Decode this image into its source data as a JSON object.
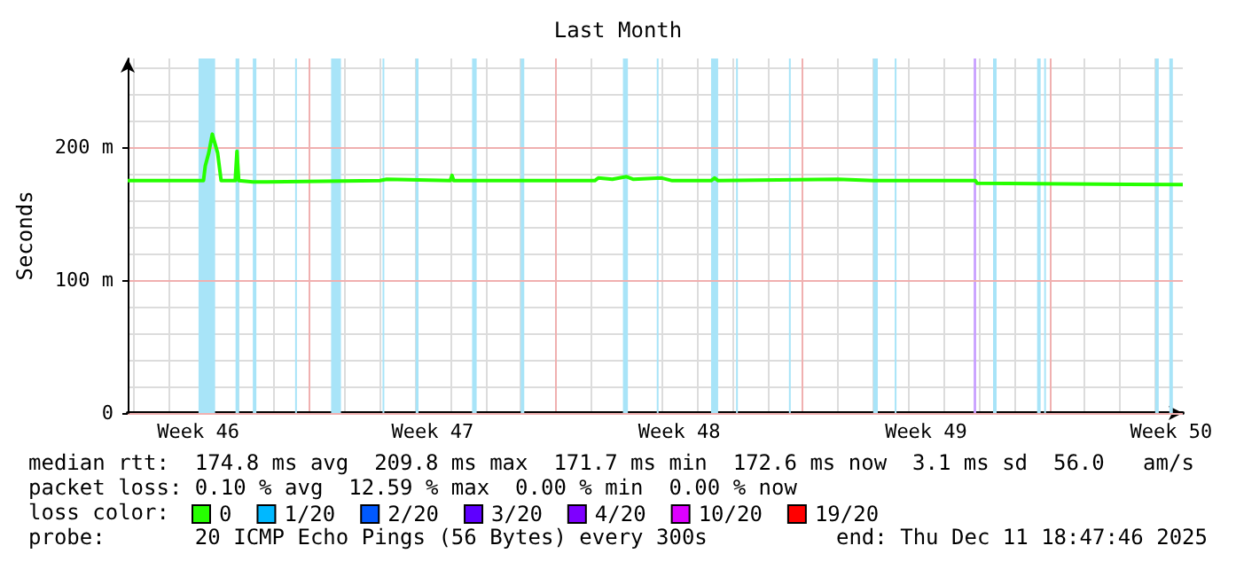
{
  "chart_data": {
    "type": "line",
    "title": "Last Month",
    "ylabel": "Seconds",
    "xlim": [
      "2025-11-11T20:24",
      "2025-12-11T18:47"
    ],
    "ylim": [
      0,
      267
    ],
    "xticks": [
      {
        "value": "2025-11-13T20:24",
        "label": "Week 46"
      },
      {
        "value": "2025-11-20T12:00",
        "label": "Week 47"
      },
      {
        "value": "2025-11-27T12:00",
        "label": "Week 48"
      },
      {
        "value": "2025-12-04T12:00",
        "label": "Week 49"
      },
      {
        "value": "2025-12-11T10:48",
        "label": "Week 50"
      }
    ],
    "yticks": [
      0,
      {
        "value": 100,
        "label": "100 m"
      },
      {
        "value": 200,
        "label": "200 m"
      }
    ],
    "grid": true,
    "legend": "bottom left",
    "legend_title": "loss color:",
    "marker": "none",
    "line_style": "solid",
    "series": [
      {
        "name": "0",
        "color": "#26ff00",
        "x": [
          "2025-11-11T20:24",
          "2025-11-14T00:00",
          "2025-11-14T01:12",
          "2025-11-14T03:36",
          "2025-11-14T06:00",
          "2025-11-14T09:36",
          "2025-11-14T12:00",
          "2025-11-14T21:36",
          "2025-11-14T22:48",
          "2025-11-15T00:00",
          "2025-11-15T09:36",
          "2025-11-15T19:12",
          "2025-11-19T00:00",
          "2025-11-19T04:48",
          "2025-11-21T00:00",
          "2025-11-21T01:12",
          "2025-11-21T02:24",
          "2025-11-25T02:24",
          "2025-11-25T04:48",
          "2025-11-25T14:24",
          "2025-11-26T00:00",
          "2025-11-26T04:48",
          "2025-11-27T00:00",
          "2025-11-27T07:12",
          "2025-11-28T09:36",
          "2025-11-28T12:00",
          "2025-11-28T14:24",
          "2025-12-02T00:00",
          "2025-12-03T00:00",
          "2025-12-05T21:36",
          "2025-12-05T22:48",
          "2025-12-11T18:47"
        ],
        "values": [
          175,
          175,
          186,
          196,
          210,
          196,
          175,
          175,
          197,
          175,
          174,
          174,
          175,
          176,
          175,
          179,
          175,
          175,
          177,
          176,
          178,
          176,
          177,
          175,
          175,
          177,
          175,
          176,
          175,
          175,
          173,
          172
        ]
      },
      {
        "name": "1/20",
        "color": "#00b8ff"
      },
      {
        "name": "2/20",
        "color": "#0059ff"
      },
      {
        "name": "3/20",
        "color": "#5e00ff"
      },
      {
        "name": "4/20",
        "color": "#7e00ff"
      },
      {
        "name": "10/20",
        "color": "#dd00ff"
      },
      {
        "name": "19/20",
        "color": "#ff0000"
      }
    ],
    "bands": [
      {
        "axis": "x",
        "from": "2025-11-13T20:38",
        "to": "2025-11-14T07:55",
        "color": "#a8e4f8"
      },
      {
        "axis": "x",
        "from": "2025-11-14T21:50",
        "to": "2025-11-15T00:14",
        "color": "#a8e4f8"
      },
      {
        "axis": "x",
        "from": "2025-11-15T09:36",
        "to": "2025-11-15T12:00",
        "color": "#a8e4f8"
      },
      {
        "axis": "x",
        "from": "2025-11-16T14:24",
        "to": "2025-11-16T15:36",
        "color": "#a8e4f8"
      },
      {
        "axis": "x",
        "from": "2025-11-17T14:53",
        "to": "2025-11-17T21:36",
        "color": "#a8e4f8"
      },
      {
        "axis": "x",
        "from": "2025-11-19T01:55",
        "to": "2025-11-19T03:07",
        "color": "#a8e4f8"
      },
      {
        "axis": "x",
        "from": "2025-11-20T00:29",
        "to": "2025-11-20T02:24",
        "color": "#a8e4f8"
      },
      {
        "axis": "x",
        "from": "2025-11-21T14:53",
        "to": "2025-11-21T18:00",
        "color": "#a8e4f8"
      },
      {
        "axis": "x",
        "from": "2025-11-23T00:00",
        "to": "2025-11-23T02:24",
        "color": "#a8e4f8"
      },
      {
        "axis": "x",
        "from": "2025-11-25T21:36",
        "to": "2025-11-26T00:58",
        "color": "#a8e4f8"
      },
      {
        "axis": "x",
        "from": "2025-11-26T20:38",
        "to": "2025-11-26T21:50",
        "color": "#a8e4f8"
      },
      {
        "axis": "x",
        "from": "2025-11-28T09:36",
        "to": "2025-11-28T14:24",
        "color": "#a8e4f8"
      },
      {
        "axis": "x",
        "from": "2025-11-29T02:38",
        "to": "2025-11-29T03:50",
        "color": "#a8e4f8"
      },
      {
        "axis": "x",
        "from": "2025-11-30T14:38",
        "to": "2025-11-30T15:50",
        "color": "#a8e4f8"
      },
      {
        "axis": "x",
        "from": "2025-12-03T00:00",
        "to": "2025-12-03T03:07",
        "color": "#a8e4f8"
      },
      {
        "axis": "x",
        "from": "2025-12-03T14:38",
        "to": "2025-12-03T15:50",
        "color": "#a8e4f8"
      },
      {
        "axis": "x",
        "from": "2025-12-05T20:24",
        "to": "2025-12-05T22:05",
        "color": "#c8a0ff"
      },
      {
        "axis": "x",
        "from": "2025-12-06T09:36",
        "to": "2025-12-06T12:00",
        "color": "#a8e4f8"
      },
      {
        "axis": "x",
        "from": "2025-12-07T15:36",
        "to": "2025-12-07T18:00",
        "color": "#a8e4f8"
      },
      {
        "axis": "x",
        "from": "2025-12-07T20:24",
        "to": "2025-12-07T21:36",
        "color": "#a8e4f8"
      },
      {
        "axis": "x",
        "from": "2025-12-11T00:00",
        "to": "2025-12-11T02:24",
        "color": "#a8e4f8"
      },
      {
        "axis": "x",
        "from": "2025-12-11T09:36",
        "to": "2025-12-11T12:00",
        "color": "#a8e4f8"
      }
    ],
    "annotations": [
      "median rtt:  174.8 ms avg  209.8 ms max  171.7 ms min  172.6 ms now  3.1 ms sd  56.0   am/s",
      "packet loss: 0.10 % avg  12.59 % max  0.00 % min  0.00 % now",
      "probe:       20 ICMP Echo Pings (56 Bytes) every 300s",
      "end: Thu Dec 11 18:47:46 2025"
    ]
  }
}
